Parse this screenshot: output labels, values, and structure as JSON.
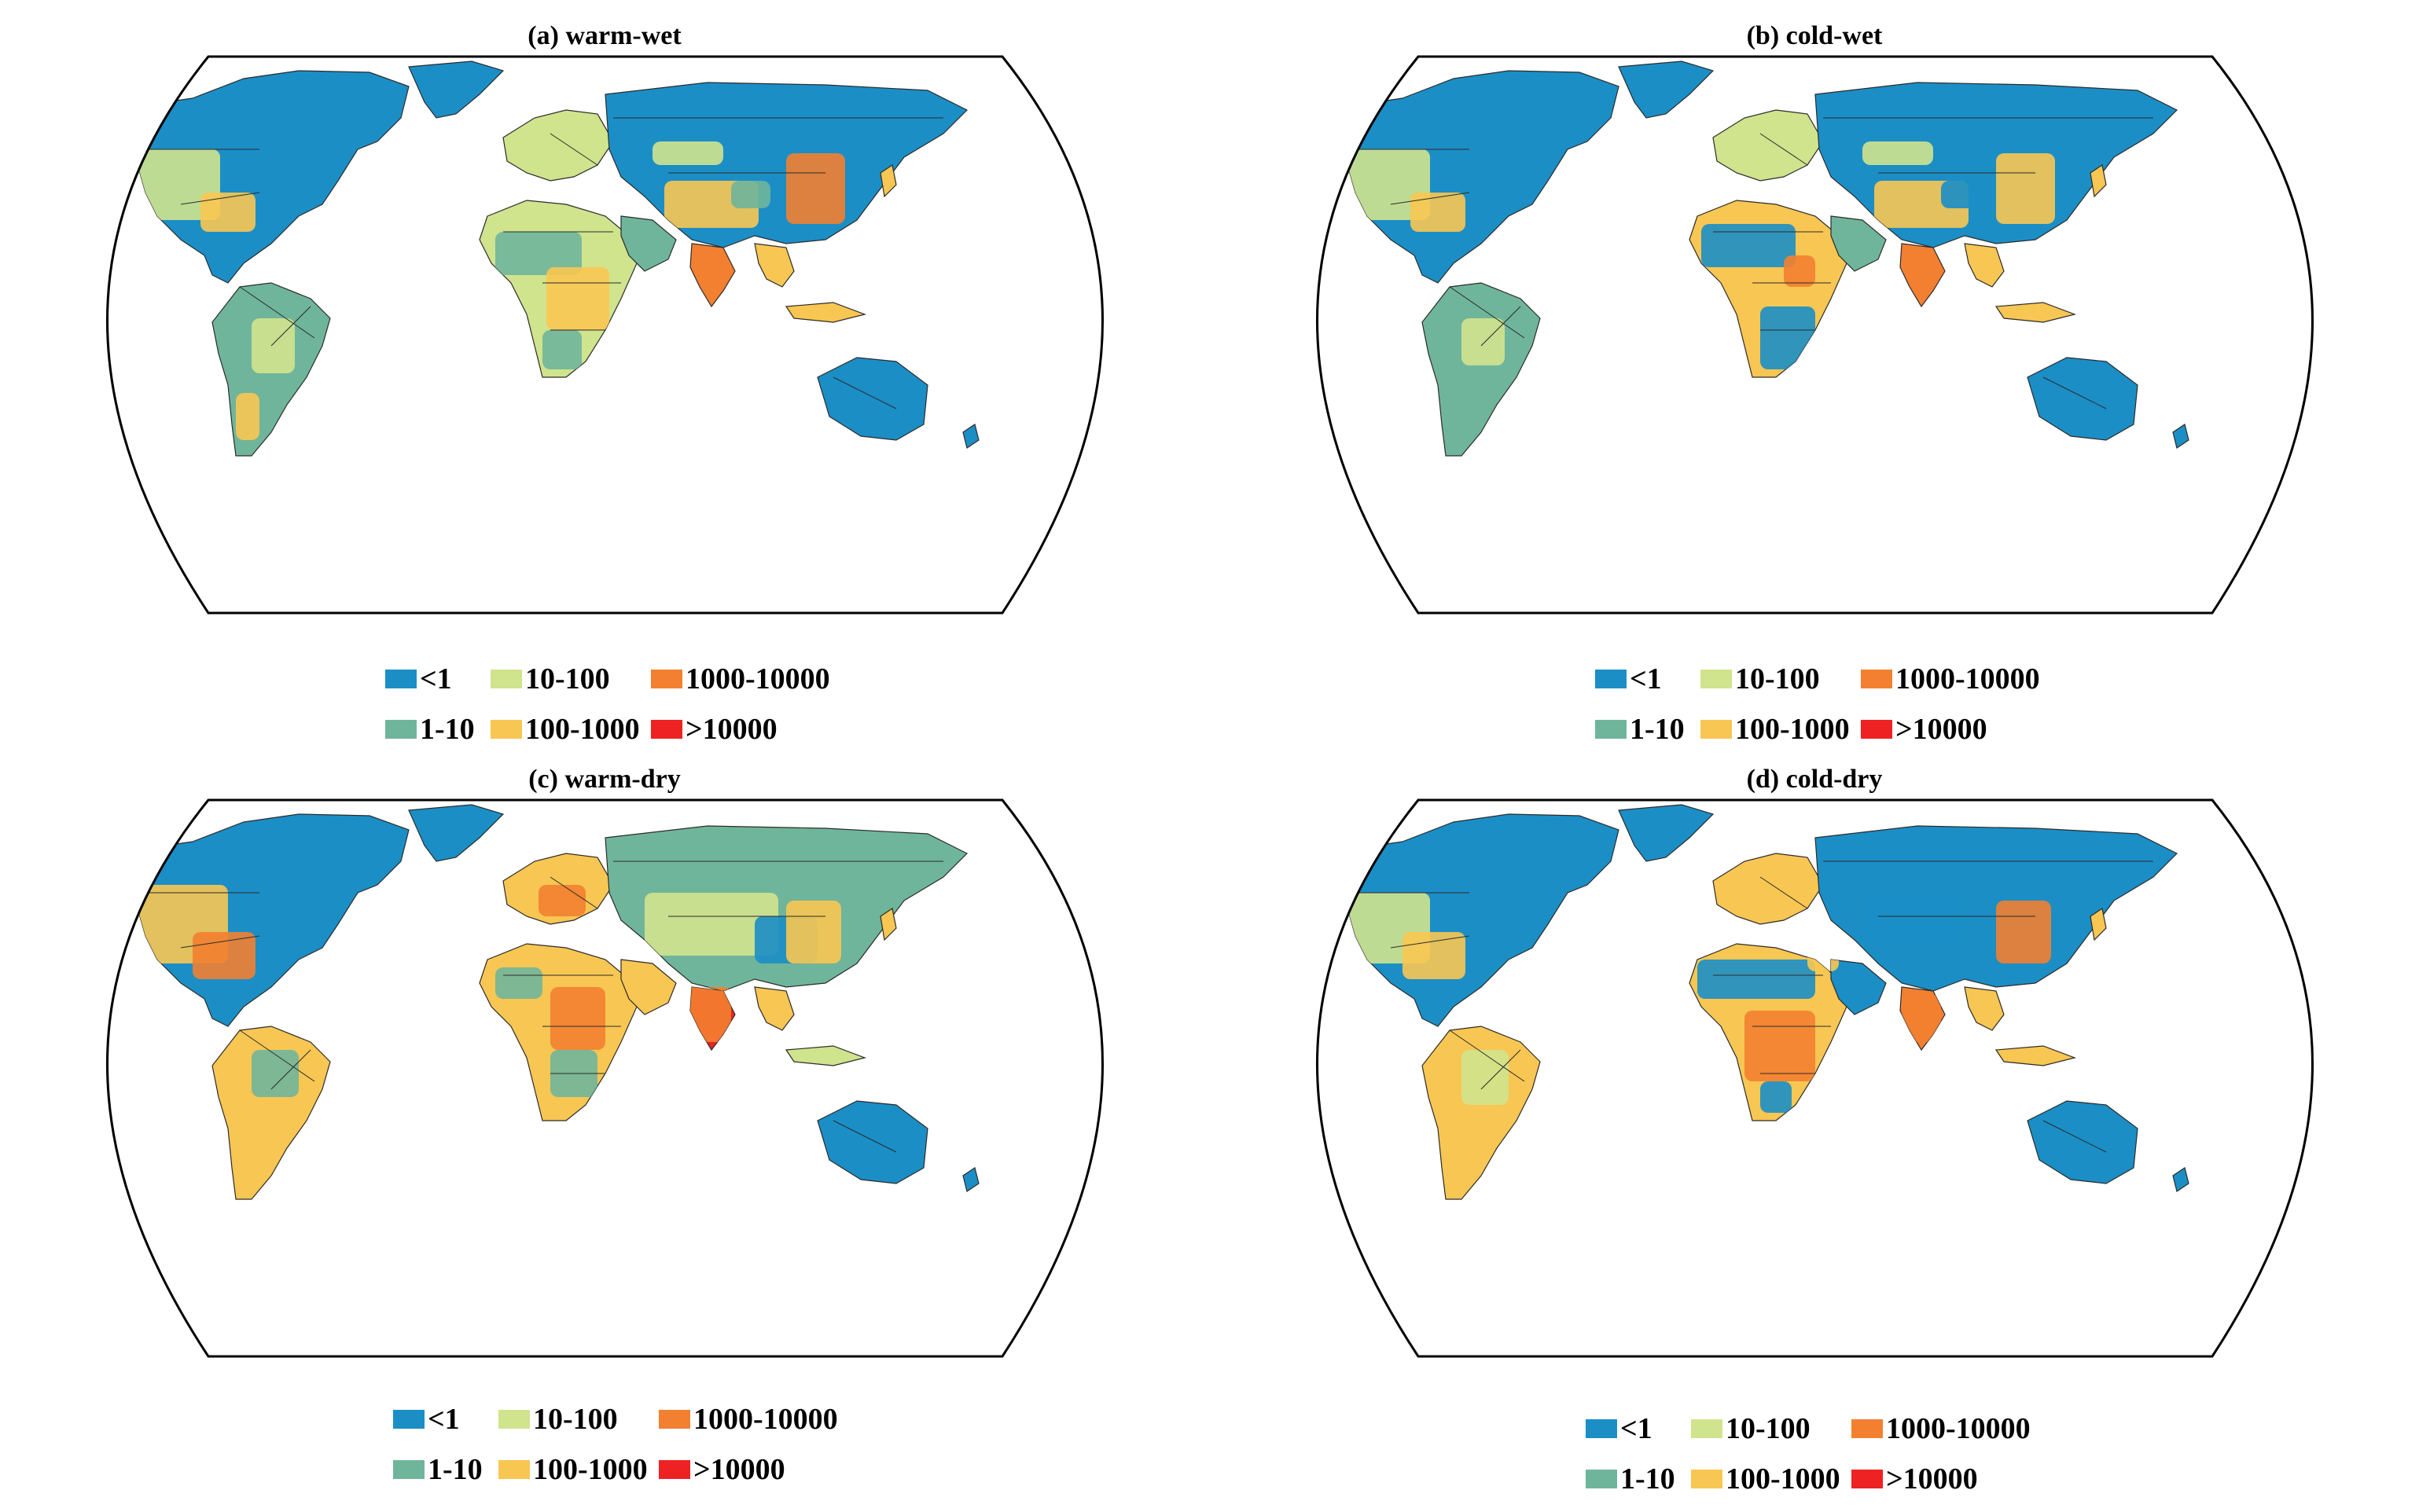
{
  "colors": {
    "ocean": "#ffffff",
    "outline": "#000000",
    "border": "#2b2b2b"
  },
  "legend": {
    "items": [
      {
        "label": "<1",
        "color": "#1b8ec6",
        "icon": "swatch-lt1"
      },
      {
        "label": "10-100",
        "color": "#d0e38d",
        "icon": "swatch-10-100"
      },
      {
        "label": "1000-10000",
        "color": "#f28030",
        "icon": "swatch-1000-10000"
      },
      {
        "label": "1-10",
        "color": "#6fb59b",
        "icon": "swatch-1-10"
      },
      {
        "label": "100-1000",
        "color": "#f8c652",
        "icon": "swatch-100-1000"
      },
      {
        "label": ">10000",
        "color": "#ee2222",
        "icon": "swatch-gt10000"
      }
    ]
  },
  "panels": [
    {
      "title": "(a) warm-wet"
    },
    {
      "title": "(b) cold-wet"
    },
    {
      "title": "(c) warm-dry"
    },
    {
      "title": "(d) cold-dry"
    }
  ]
}
